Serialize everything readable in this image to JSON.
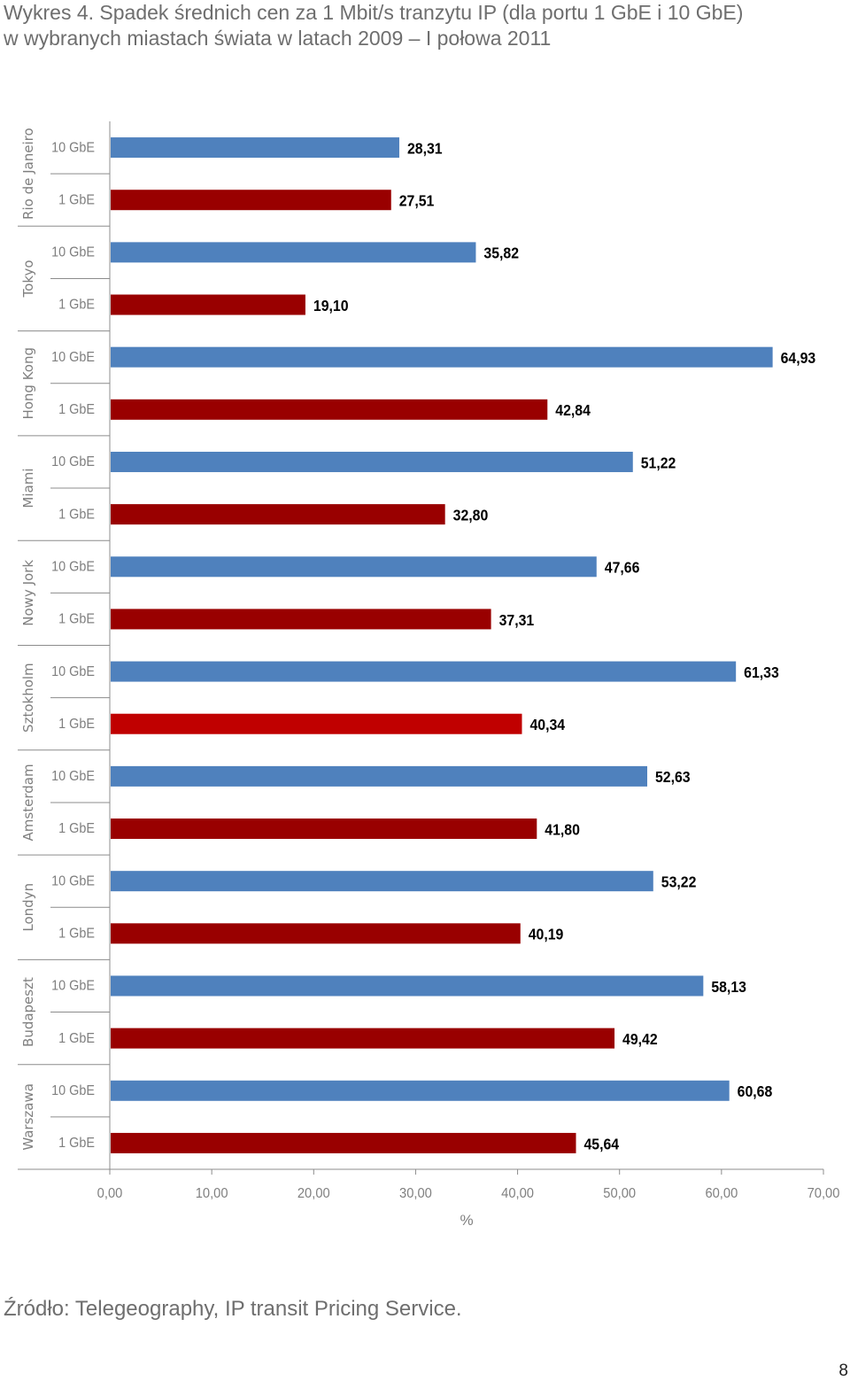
{
  "title_line1": "Wykres 4. Spadek średnich cen za 1 Mbit/s tranzytu IP (dla portu 1 GbE i 10 GbE)",
  "title_line2": "w wybranych miastach świata w latach 2009 – I połowa 2011",
  "source": "Źródło: Telegeography, IP transit Pricing Service.",
  "page_number": "8",
  "colors": {
    "gbe10": "#4f81bd",
    "gbe1": "#990000",
    "gbe1_highlight": "#c00000",
    "axis": "#8c8c8c",
    "label": "#7f7f7f"
  },
  "chart_data": {
    "type": "bar",
    "orientation": "horizontal",
    "xlabel": "%",
    "xlim": [
      0,
      70
    ],
    "xticks": [
      "0,00",
      "10,00",
      "20,00",
      "30,00",
      "40,00",
      "50,00",
      "60,00",
      "70,00"
    ],
    "grid": false,
    "legend": "none",
    "groups": [
      {
        "city": "Rio de Janeiro",
        "bars": [
          {
            "label": "10 GbE",
            "value": 28.31,
            "text": "28,31"
          },
          {
            "label": "1 GbE",
            "value": 27.51,
            "text": "27,51"
          }
        ]
      },
      {
        "city": "Tokyo",
        "bars": [
          {
            "label": "10 GbE",
            "value": 35.82,
            "text": "35,82"
          },
          {
            "label": "1 GbE",
            "value": 19.1,
            "text": "19,10"
          }
        ]
      },
      {
        "city": "Hong Kong",
        "bars": [
          {
            "label": "10 GbE",
            "value": 64.93,
            "text": "64,93"
          },
          {
            "label": "1 GbE",
            "value": 42.84,
            "text": "42,84"
          }
        ]
      },
      {
        "city": "Miami",
        "bars": [
          {
            "label": "10 GbE",
            "value": 51.22,
            "text": "51,22"
          },
          {
            "label": "1 GbE",
            "value": 32.8,
            "text": "32,80"
          }
        ]
      },
      {
        "city": "Nowy Jork",
        "bars": [
          {
            "label": "10 GbE",
            "value": 47.66,
            "text": "47,66"
          },
          {
            "label": "1 GbE",
            "value": 37.31,
            "text": "37,31"
          }
        ]
      },
      {
        "city": "Sztokholm",
        "bars": [
          {
            "label": "10 GbE",
            "value": 61.33,
            "text": "61,33"
          },
          {
            "label": "1 GbE",
            "value": 40.34,
            "text": "40,34",
            "highlight": true
          }
        ]
      },
      {
        "city": "Amsterdam",
        "bars": [
          {
            "label": "10 GbE",
            "value": 52.63,
            "text": "52,63"
          },
          {
            "label": "1 GbE",
            "value": 41.8,
            "text": "41,80"
          }
        ]
      },
      {
        "city": "Londyn",
        "bars": [
          {
            "label": "10 GbE",
            "value": 53.22,
            "text": "53,22"
          },
          {
            "label": "1 GbE",
            "value": 40.19,
            "text": "40,19"
          }
        ]
      },
      {
        "city": "Budapeszt",
        "bars": [
          {
            "label": "10 GbE",
            "value": 58.13,
            "text": "58,13"
          },
          {
            "label": "1 GbE",
            "value": 49.42,
            "text": "49,42"
          }
        ]
      },
      {
        "city": "Warszawa",
        "bars": [
          {
            "label": "10 GbE",
            "value": 60.68,
            "text": "60,68"
          },
          {
            "label": "1 GbE",
            "value": 45.64,
            "text": "45,64"
          }
        ]
      }
    ]
  }
}
